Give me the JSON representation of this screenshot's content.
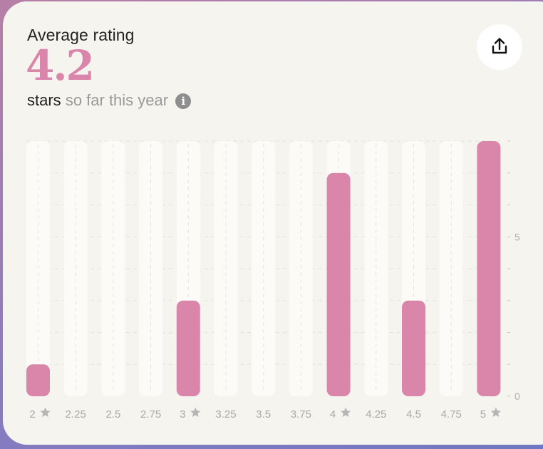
{
  "card": {
    "title": "Average rating",
    "value": "4.2",
    "subtitle_strong": "stars",
    "subtitle_muted": "so far this year",
    "info_glyph": "i"
  },
  "icons": {
    "share": "share-icon",
    "info": "info-icon",
    "star": "star-icon"
  },
  "colors": {
    "bar": "#da86aa",
    "track": "#fcfbf7",
    "card": "#f6f4ef",
    "accent": "#d986aa"
  },
  "chart_data": {
    "type": "bar",
    "categories": [
      "2",
      "2.25",
      "2.5",
      "2.75",
      "3",
      "3.25",
      "3.5",
      "3.75",
      "4",
      "4.25",
      "4.5",
      "4.75",
      "5"
    ],
    "star_categories": [
      "2",
      "3",
      "4",
      "5"
    ],
    "values": [
      1,
      0,
      0,
      0,
      3,
      0,
      0,
      0,
      7,
      0,
      3,
      0,
      8
    ],
    "ylim": [
      0,
      8
    ],
    "y_tick_labels": [
      "0",
      "5"
    ],
    "y_tick_values": [
      0,
      5
    ],
    "grid": true
  }
}
